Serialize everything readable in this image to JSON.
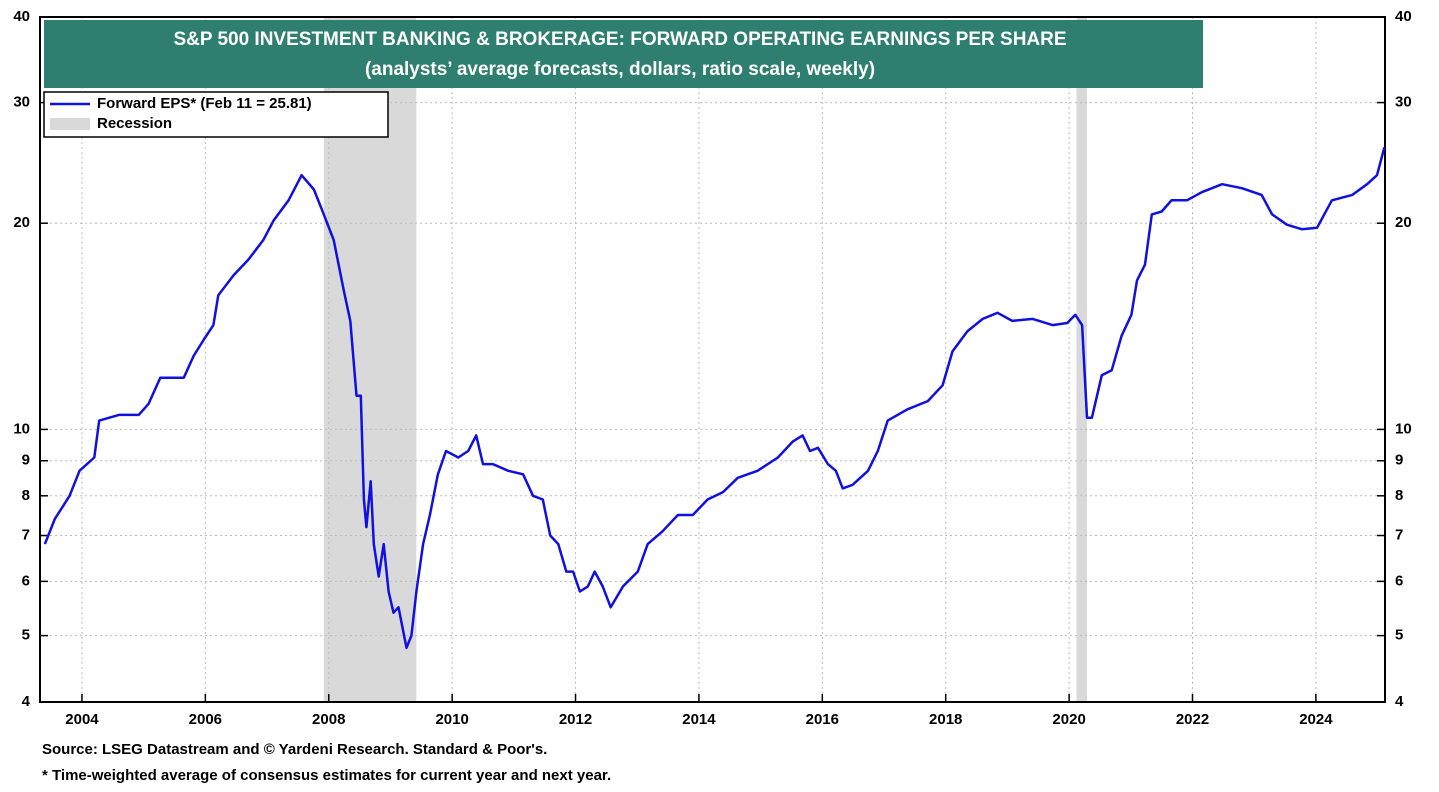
{
  "chart_data": {
    "type": "line",
    "title": "S&P 500 INVESTMENT BANKING & BROKERAGE: FORWARD OPERATING EARNINGS PER SHARE",
    "subtitle": "(analysts’ average forecasts, dollars, ratio scale, weekly)",
    "source": "Source: LSEG Datastream and © Yardeni Research. Standard & Poor's.",
    "footnote": "* Time-weighted average of consensus estimates for current year and next year.",
    "log_scale": true,
    "grid": true,
    "xlim": [
      2003.32,
      2025.12
    ],
    "xticks": [
      2004,
      2006,
      2008,
      2010,
      2012,
      2014,
      2016,
      2018,
      2020,
      2022,
      2024
    ],
    "ylim": [
      4,
      40
    ],
    "yticks": [
      4,
      5,
      6,
      7,
      8,
      9,
      10,
      20,
      30,
      40
    ],
    "recession_label": "Recession",
    "recession_color": "#d9d9d9",
    "recessions": [
      [
        2007.92,
        2009.42
      ],
      [
        2020.12,
        2020.29
      ]
    ],
    "x": [
      2003.4,
      2003.56,
      2003.8,
      2003.96,
      2004.2,
      2004.28,
      2004.6,
      2004.92,
      2005.08,
      2005.27,
      2005.65,
      2005.81,
      2005.97,
      2006.13,
      2006.21,
      2006.46,
      2006.7,
      2006.94,
      2007.11,
      2007.35,
      2007.56,
      2007.76,
      2007.92,
      2008.08,
      2008.24,
      2008.35,
      2008.45,
      2008.52,
      2008.57,
      2008.61,
      2008.68,
      2008.73,
      2008.81,
      2008.89,
      2008.97,
      2009.05,
      2009.13,
      2009.26,
      2009.34,
      2009.42,
      2009.53,
      2009.64,
      2009.77,
      2009.9,
      2010.1,
      2010.26,
      2010.39,
      2010.5,
      2010.66,
      2010.91,
      2011.15,
      2011.31,
      2011.47,
      2011.59,
      2011.72,
      2011.85,
      2011.96,
      2012.07,
      2012.2,
      2012.31,
      2012.44,
      2012.57,
      2012.77,
      2013.01,
      2013.17,
      2013.41,
      2013.66,
      2013.9,
      2014.14,
      2014.39,
      2014.63,
      2014.95,
      2015.28,
      2015.52,
      2015.68,
      2015.8,
      2015.93,
      2016.09,
      2016.22,
      2016.33,
      2016.49,
      2016.74,
      2016.9,
      2017.06,
      2017.38,
      2017.71,
      2017.95,
      2018.11,
      2018.35,
      2018.6,
      2018.84,
      2019.08,
      2019.41,
      2019.73,
      2019.97,
      2020.1,
      2020.21,
      2020.29,
      2020.37,
      2020.53,
      2020.69,
      2020.85,
      2021.01,
      2021.1,
      2021.23,
      2021.34,
      2021.5,
      2021.66,
      2021.91,
      2022.15,
      2022.48,
      2022.8,
      2023.12,
      2023.29,
      2023.53,
      2023.77,
      2024.02,
      2024.26,
      2024.59,
      2024.83,
      2024.99,
      2025.11
    ],
    "series": [
      {
        "name": "Forward EPS* (Feb 11 = 25.81)",
        "color": "#1010e0",
        "values": [
          6.8,
          7.4,
          8.0,
          8.7,
          9.1,
          10.3,
          10.5,
          10.5,
          10.9,
          11.9,
          11.9,
          12.8,
          13.5,
          14.2,
          15.7,
          16.8,
          17.7,
          18.9,
          20.2,
          21.6,
          23.5,
          22.4,
          20.6,
          18.9,
          16.0,
          14.4,
          11.2,
          11.2,
          7.9,
          7.2,
          8.4,
          6.8,
          6.1,
          6.8,
          5.8,
          5.4,
          5.5,
          4.8,
          5.0,
          5.8,
          6.8,
          7.5,
          8.6,
          9.3,
          9.1,
          9.3,
          9.8,
          8.9,
          8.9,
          8.7,
          8.6,
          8.0,
          7.9,
          7.0,
          6.8,
          6.2,
          6.2,
          5.8,
          5.9,
          6.2,
          5.9,
          5.5,
          5.9,
          6.2,
          6.8,
          7.1,
          7.5,
          7.5,
          7.9,
          8.1,
          8.5,
          8.7,
          9.1,
          9.6,
          9.8,
          9.3,
          9.4,
          8.9,
          8.7,
          8.2,
          8.3,
          8.7,
          9.3,
          10.3,
          10.7,
          11.0,
          11.6,
          13.0,
          13.9,
          14.5,
          14.8,
          14.4,
          14.5,
          14.2,
          14.3,
          14.7,
          14.2,
          10.4,
          10.4,
          12.0,
          12.2,
          13.7,
          14.7,
          16.5,
          17.4,
          20.6,
          20.8,
          21.6,
          21.6,
          22.2,
          22.8,
          22.5,
          22.0,
          20.6,
          19.9,
          19.6,
          19.7,
          21.6,
          22.0,
          22.8,
          23.5,
          25.81
        ]
      }
    ]
  }
}
